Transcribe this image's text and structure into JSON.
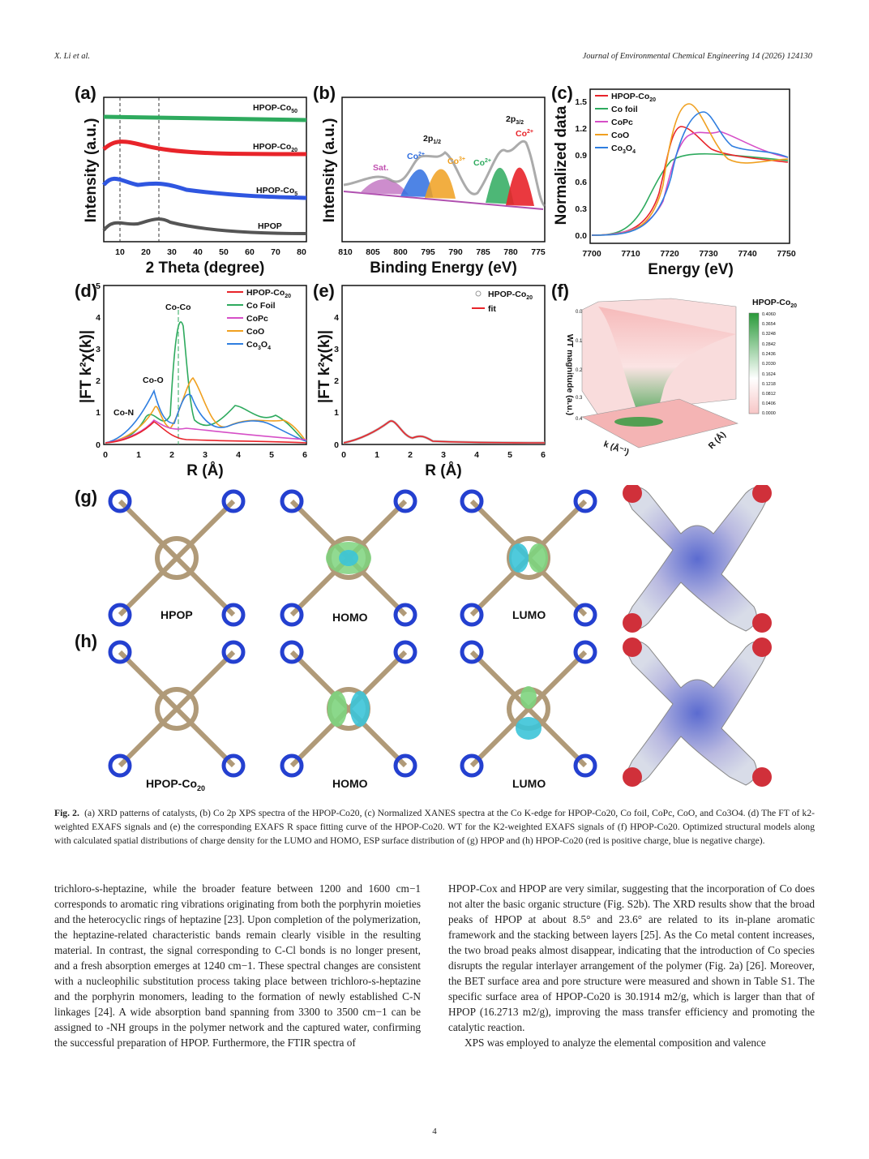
{
  "header": {
    "left": "X. Li et al.",
    "right": "Journal of Environmental Chemical Engineering 14 (2026) 124130"
  },
  "figure": {
    "panel_a": {
      "label": "(a)",
      "xlabel": "2 Theta (degree)",
      "ylabel": "Intensity (a.u.)",
      "xticks": [
        "10",
        "20",
        "30",
        "40",
        "50",
        "60",
        "70",
        "80"
      ],
      "series": [
        "HPOP-Co50",
        "HPOP-Co20",
        "HPOP-Co5",
        "HPOP"
      ],
      "colors": [
        "#2eaa5e",
        "#e8242a",
        "#2f56e0",
        "#555555"
      ]
    },
    "panel_b": {
      "label": "(b)",
      "xlabel": "Binding Energy (eV)",
      "ylabel": "Intensity (a.u.)",
      "xticks": [
        "810",
        "805",
        "800",
        "795",
        "790",
        "785",
        "780",
        "775"
      ],
      "peaks": [
        "Sat.",
        "Co2+",
        "Co3+",
        "Co2+",
        "Co2+"
      ],
      "orbitals": [
        "2p1/2",
        "2p3/2"
      ]
    },
    "panel_c": {
      "label": "(c)",
      "xlabel": "Energy (eV)",
      "ylabel": "Normalized data",
      "xticks": [
        "7700",
        "7710",
        "7720",
        "7730",
        "7740",
        "7750"
      ],
      "yticks": [
        "0.0",
        "0.3",
        "0.6",
        "0.9",
        "1.2",
        "1.5"
      ],
      "legend": [
        "HPOP-Co20",
        "Co foil",
        "CoPc",
        "CoO",
        "Co3O4"
      ],
      "colors": [
        "#e8242a",
        "#2eaa5e",
        "#d64fc7",
        "#f0a020",
        "#2f7ee0"
      ]
    },
    "panel_d": {
      "label": "(d)",
      "xlabel": "R (Å)",
      "ylabel": "|FT k²χ(k)|",
      "xticks": [
        "0",
        "1",
        "2",
        "3",
        "4",
        "5",
        "6"
      ],
      "yticks": [
        "0",
        "1",
        "2",
        "3",
        "4",
        "5"
      ],
      "legend": [
        "HPOP-Co20",
        "Co Foil",
        "CoPc",
        "CoO",
        "Co3O4"
      ],
      "annotations": [
        "Co-Co",
        "Co-O",
        "Co-N"
      ]
    },
    "panel_e": {
      "label": "(e)",
      "xlabel": "R (Å)",
      "ylabel": "|FT k²χ(k)|",
      "xticks": [
        "0",
        "1",
        "2",
        "3",
        "4",
        "5",
        "6"
      ],
      "yticks": [
        "0",
        "1",
        "2",
        "3",
        "4"
      ],
      "legend": [
        "HPOP-Co20",
        "fit"
      ]
    },
    "panel_f": {
      "label": "(f)",
      "title": "HPOP-Co20",
      "zlabel": "WT magnitude (a.u.)",
      "xlabel": "k (Å⁻¹)",
      "ylabel": "R (Å)",
      "colorbar": [
        "0.4060",
        "0.3654",
        "0.3248",
        "0.2842",
        "0.2436",
        "0.2030",
        "0.1624",
        "0.1218",
        "0.0812",
        "0.0406",
        "0.0000"
      ],
      "zticks": [
        "0.0",
        "0.1",
        "0.2",
        "0.3",
        "0.4"
      ]
    },
    "panel_g": {
      "label": "(g)",
      "molecules": [
        "HPOP",
        "HOMO",
        "LUMO"
      ]
    },
    "panel_h": {
      "label": "(h)",
      "molecules": [
        "HPOP-Co20",
        "HOMO",
        "LUMO"
      ]
    }
  },
  "caption": {
    "title": "Fig. 2.",
    "text": "(a) XRD patterns of catalysts, (b) Co 2p XPS spectra of the HPOP-Co20, (c) Normalized XANES spectra at the Co K-edge for HPOP-Co20, Co foil, CoPc, CoO, and Co3O4. (d) The FT of k2-weighted EXAFS signals and (e) the corresponding EXAFS R space fitting curve of the HPOP-Co20. WT for the K2-weighted EXAFS signals of (f) HPOP-Co20. Optimized structural models along with calculated spatial distributions of charge density for the LUMO and HOMO, ESP surface distribution of (g) HPOP and (h) HPOP-Co20 (red is positive charge, blue is negative charge)."
  },
  "body_left": "trichloro-s-heptazine, while the broader feature between 1200 and 1600 cm−1 corresponds to aromatic ring vibrations originating from both the porphyrin moieties and the heterocyclic rings of heptazine [23]. Upon completion of the polymerization, the heptazine-related characteristic bands remain clearly visible in the resulting material. In contrast, the signal corresponding to C-Cl bonds is no longer present, and a fresh absorption emerges at 1240 cm−1. These spectral changes are consistent with a nucleophilic substitution process taking place between trichloro-s-heptazine and the porphyrin monomers, leading to the formation of newly established C-N linkages [24]. A wide absorption band spanning from 3300 to 3500 cm−1 can be assigned to -NH groups in the polymer network and the captured water, confirming the successful preparation of HPOP. Furthermore, the FTIR spectra of",
  "body_right_p1": "HPOP-Cox and HPOP are very similar, suggesting that the incorporation of Co does not alter the basic organic structure (Fig. S2b). The XRD results show that the broad peaks of HPOP at about 8.5° and 23.6° are related to its in-plane aromatic framework and the stacking between layers [25]. As the Co metal content increases, the two broad peaks almost disappear, indicating that the introduction of Co species disrupts the regular interlayer arrangement of the polymer (Fig. 2a) [26]. Moreover, the BET surface area and pore structure were measured and shown in Table S1. The specific surface area of HPOP-Co20 is 30.1914 m2/g, which is larger than that of HPOP (16.2713 m2/g), improving the mass transfer efficiency and promoting the catalytic reaction.",
  "body_right_p2": "XPS was employed to analyze the elemental composition and valence",
  "page_number": "4"
}
